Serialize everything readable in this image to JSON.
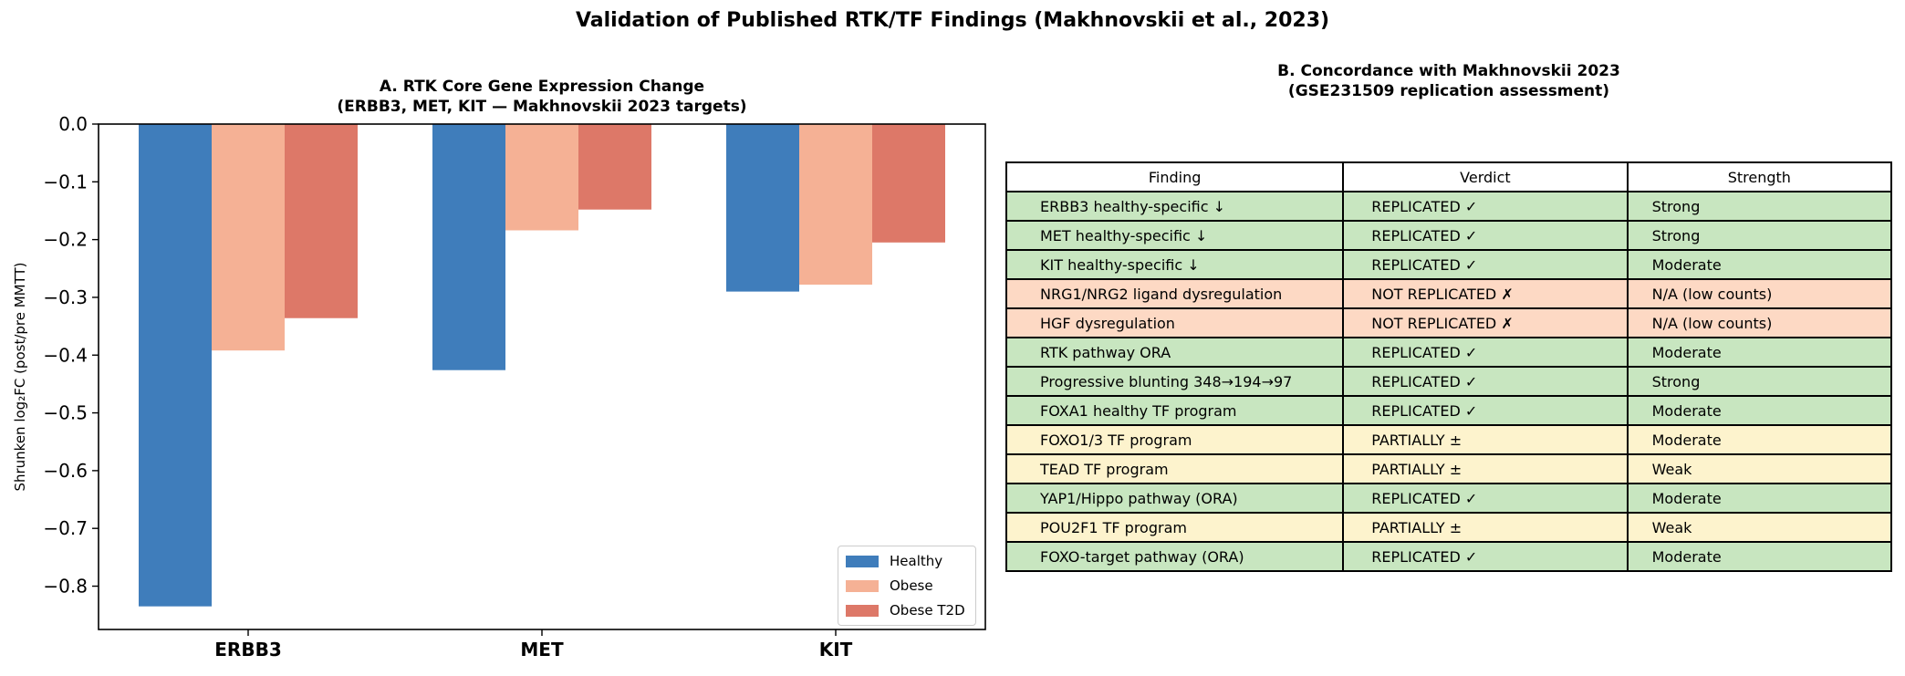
{
  "suptitle": "Validation of Published RTK/TF Findings (Makhnovskii et al., 2023)",
  "chart_data": [
    {
      "type": "bar",
      "title": "A. RTK Core Gene Expression Change",
      "subtitle": "(ERBB3, MET, KIT — Makhnovskii 2023 targets)",
      "xlabel": "",
      "ylabel": "Shrunken log₂FC (post/pre MMTT)",
      "ylim": [
        -0.875,
        0.0
      ],
      "yticks": [
        0.0,
        -0.1,
        -0.2,
        -0.3,
        -0.4,
        -0.5,
        -0.6,
        -0.7,
        -0.8
      ],
      "ytick_labels": [
        "0.0",
        "−0.1",
        "−0.2",
        "−0.3",
        "−0.4",
        "−0.5",
        "−0.6",
        "−0.7",
        "−0.8"
      ],
      "categories": [
        "ERBB3",
        "MET",
        "KIT"
      ],
      "series": [
        {
          "name": "Healthy",
          "color": "#3f7dbb",
          "values": [
            -0.835,
            -0.426,
            -0.29
          ]
        },
        {
          "name": "Obese",
          "color": "#f5b195",
          "values": [
            -0.392,
            -0.184,
            -0.278
          ]
        },
        {
          "name": "Obese T2D",
          "color": "#dd7868",
          "values": [
            -0.336,
            -0.148,
            -0.205
          ]
        }
      ],
      "legend_position": "lower right",
      "grid": false
    },
    {
      "type": "table",
      "title": "B. Concordance with Makhnovskii 2023",
      "subtitle": "(GSE231509 replication assessment)",
      "columns": [
        "Finding",
        "Verdict",
        "Strength"
      ],
      "rows": [
        {
          "cells": [
            "ERBB3 healthy-specific ↓",
            "REPLICATED ✓",
            "Strong"
          ],
          "color": "#c8e6c0"
        },
        {
          "cells": [
            "MET healthy-specific ↓",
            "REPLICATED ✓",
            "Strong"
          ],
          "color": "#c8e6c0"
        },
        {
          "cells": [
            "KIT healthy-specific ↓",
            "REPLICATED ✓",
            "Moderate"
          ],
          "color": "#c8e6c0"
        },
        {
          "cells": [
            "NRG1/NRG2 ligand dysregulation",
            "NOT REPLICATED ✗",
            "N/A (low counts)"
          ],
          "color": "#fdd9c4"
        },
        {
          "cells": [
            "HGF dysregulation",
            "NOT REPLICATED ✗",
            "N/A (low counts)"
          ],
          "color": "#fdd9c4"
        },
        {
          "cells": [
            "RTK pathway ORA",
            "REPLICATED ✓",
            "Moderate"
          ],
          "color": "#c8e6c0"
        },
        {
          "cells": [
            "Progressive blunting 348→194→97",
            "REPLICATED ✓",
            "Strong"
          ],
          "color": "#c8e6c0"
        },
        {
          "cells": [
            "FOXA1 healthy TF program",
            "REPLICATED ✓",
            "Moderate"
          ],
          "color": "#c8e6c0"
        },
        {
          "cells": [
            "FOXO1/3 TF program",
            "PARTIALLY ±",
            "Moderate"
          ],
          "color": "#fdf3cd"
        },
        {
          "cells": [
            "TEAD TF program",
            "PARTIALLY ±",
            "Weak"
          ],
          "color": "#fdf3cd"
        },
        {
          "cells": [
            "YAP1/Hippo pathway (ORA)",
            "REPLICATED ✓",
            "Moderate"
          ],
          "color": "#c8e6c0"
        },
        {
          "cells": [
            "POU2F1 TF program",
            "PARTIALLY ±",
            "Weak"
          ],
          "color": "#fdf3cd"
        },
        {
          "cells": [
            "FOXO-target pathway (ORA)",
            "REPLICATED ✓",
            "Moderate"
          ],
          "color": "#c8e6c0"
        }
      ]
    }
  ]
}
